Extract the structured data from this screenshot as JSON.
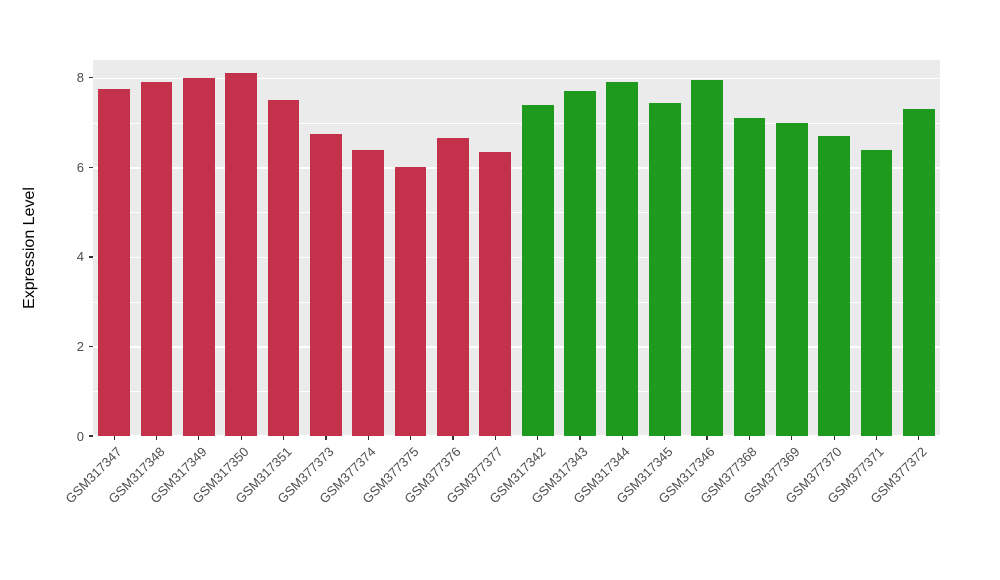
{
  "chart_data": {
    "type": "bar",
    "title": "",
    "xlabel": "",
    "ylabel": "Expression Level",
    "ylim": [
      0,
      8.4
    ],
    "yticks": [
      0,
      2,
      4,
      6,
      8
    ],
    "yminor": [
      1,
      3,
      5,
      7
    ],
    "grid": "major-and-minor-horizontal",
    "legend_position": "none",
    "panel_background": "#EBEBEB",
    "gridline_color": "#FFFFFF",
    "axis_text_color": "#4D4D4D",
    "tick_color": "#333333",
    "group_colors": {
      "left-group": "#C4314B",
      "right-group": "#1E9B1E"
    },
    "categories": [
      "GSM317347",
      "GSM317348",
      "GSM317349",
      "GSM317350",
      "GSM317351",
      "GSM377373",
      "GSM377374",
      "GSM377375",
      "GSM377376",
      "GSM377377",
      "GSM317342",
      "GSM317343",
      "GSM317344",
      "GSM317345",
      "GSM317346",
      "GSM377368",
      "GSM377369",
      "GSM377370",
      "GSM377371",
      "GSM377372"
    ],
    "values": [
      7.75,
      7.9,
      8.0,
      8.1,
      7.5,
      6.75,
      6.4,
      6.0,
      6.65,
      6.35,
      7.4,
      7.7,
      7.9,
      7.45,
      7.95,
      7.1,
      7.0,
      6.7,
      6.4,
      7.3
    ],
    "colors": [
      "#C4314B",
      "#C4314B",
      "#C4314B",
      "#C4314B",
      "#C4314B",
      "#C4314B",
      "#C4314B",
      "#C4314B",
      "#C4314B",
      "#C4314B",
      "#1E9B1E",
      "#1E9B1E",
      "#1E9B1E",
      "#1E9B1E",
      "#1E9B1E",
      "#1E9B1E",
      "#1E9B1E",
      "#1E9B1E",
      "#1E9B1E",
      "#1E9B1E"
    ]
  }
}
